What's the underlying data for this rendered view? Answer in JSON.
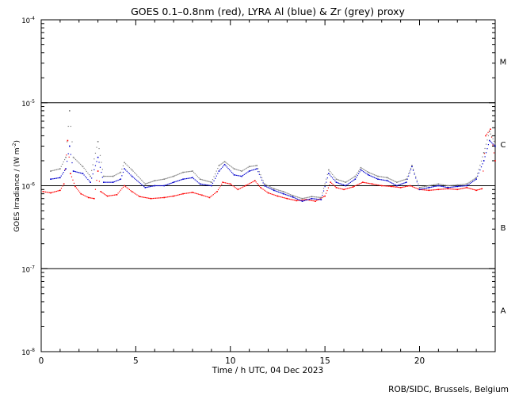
{
  "chart_data": {
    "type": "scatter",
    "title": "GOES 0.1–0.8nm (red), LYRA Al (blue) & Zr (grey) proxy",
    "xlabel": "Time / h UTC, 04 Dec 2023",
    "ylabel_main": "GOES Irradiance / (W m",
    "ylabel_sup": "-2",
    "ylabel_end": ")",
    "credit": "ROB/SIDC, Brussels, Belgium",
    "xlim": [
      0,
      24
    ],
    "ylim_log10": [
      -8,
      -4
    ],
    "x_ticks": [
      {
        "value": 0,
        "label": "0"
      },
      {
        "value": 5,
        "label": "5"
      },
      {
        "value": 10,
        "label": "10"
      },
      {
        "value": 15,
        "label": "15"
      },
      {
        "value": 20,
        "label": "20"
      }
    ],
    "y_ticks": [
      {
        "exp": -8,
        "base": "10",
        "sup": "-8"
      },
      {
        "exp": -7,
        "base": "10",
        "sup": "-7"
      },
      {
        "exp": -6,
        "base": "10",
        "sup": "-6"
      },
      {
        "exp": -5,
        "base": "10",
        "sup": "-5"
      },
      {
        "exp": -4,
        "base": "10",
        "sup": "-4"
      }
    ],
    "flare_class_lines": [
      -7,
      -6,
      -5
    ],
    "flare_classes": [
      {
        "label": "A",
        "exp": -7.5
      },
      {
        "label": "B",
        "exp": -6.5
      },
      {
        "label": "C",
        "exp": -5.5
      },
      {
        "label": "M",
        "exp": -4.5
      }
    ],
    "series": [
      {
        "name": "GOES 0.1-0.8nm",
        "color": "#ff0000",
        "points": [
          [
            0.1,
            8.5e-07
          ],
          [
            0.5,
            8.2e-07
          ],
          [
            1.0,
            8.8e-07
          ],
          [
            1.2,
            1.05e-06
          ],
          [
            1.4,
            3.5e-06
          ],
          [
            1.55,
            1.4e-06
          ],
          [
            1.8,
            9.8e-07
          ],
          [
            2.1,
            8e-07
          ],
          [
            2.5,
            7.2e-07
          ],
          [
            2.8,
            7e-07
          ],
          [
            3.0,
            1.5e-06
          ],
          [
            3.15,
            8.5e-07
          ],
          [
            3.5,
            7.5e-07
          ],
          [
            4.0,
            7.8e-07
          ],
          [
            4.4,
            1e-06
          ],
          [
            4.8,
            8.5e-07
          ],
          [
            5.2,
            7.4e-07
          ],
          [
            5.8,
            7e-07
          ],
          [
            6.5,
            7.2e-07
          ],
          [
            7.0,
            7.5e-07
          ],
          [
            7.5,
            8e-07
          ],
          [
            8.0,
            8.3e-07
          ],
          [
            8.5,
            7.7e-07
          ],
          [
            8.9,
            7.2e-07
          ],
          [
            9.3,
            8.5e-07
          ],
          [
            9.6,
            1.1e-06
          ],
          [
            10.0,
            1.05e-06
          ],
          [
            10.4,
            9e-07
          ],
          [
            10.8,
            1e-06
          ],
          [
            11.3,
            1.15e-06
          ],
          [
            11.6,
            9.5e-07
          ],
          [
            12.0,
            8.2e-07
          ],
          [
            12.5,
            7.5e-07
          ],
          [
            13.0,
            7e-07
          ],
          [
            13.5,
            6.6e-07
          ],
          [
            14.0,
            6.8e-07
          ],
          [
            14.5,
            6.5e-07
          ],
          [
            15.0,
            7.5e-07
          ],
          [
            15.3,
            1.1e-06
          ],
          [
            15.6,
            9.5e-07
          ],
          [
            16.0,
            9e-07
          ],
          [
            16.5,
            9.7e-07
          ],
          [
            17.0,
            1.1e-06
          ],
          [
            17.5,
            1.05e-06
          ],
          [
            18.0,
            1e-06
          ],
          [
            18.5,
            9.8e-07
          ],
          [
            19.0,
            9.5e-07
          ],
          [
            19.5,
            1e-06
          ],
          [
            20.0,
            9e-07
          ],
          [
            20.5,
            8.8e-07
          ],
          [
            21.0,
            9e-07
          ],
          [
            21.5,
            9.2e-07
          ],
          [
            22.0,
            9e-07
          ],
          [
            22.5,
            9.5e-07
          ],
          [
            23.0,
            8.8e-07
          ],
          [
            23.3,
            9.2e-07
          ],
          [
            23.5,
            4e-06
          ],
          [
            23.75,
            4.8e-06
          ],
          [
            24.0,
            2e-06
          ]
        ]
      },
      {
        "name": "LYRA Al proxy",
        "color": "#0000cc",
        "points": [
          [
            0.5,
            1.2e-06
          ],
          [
            1.0,
            1.25e-06
          ],
          [
            1.3,
            1.6e-06
          ],
          [
            1.5,
            3e-06
          ],
          [
            1.7,
            1.5e-06
          ],
          [
            2.2,
            1.4e-06
          ],
          [
            2.6,
            1.1e-06
          ],
          [
            3.0,
            2.2e-06
          ],
          [
            3.3,
            1.1e-06
          ],
          [
            3.8,
            1.1e-06
          ],
          [
            4.2,
            1.2e-06
          ],
          [
            4.4,
            1.6e-06
          ],
          [
            4.8,
            1.3e-06
          ],
          [
            5.5,
            9.5e-07
          ],
          [
            6.0,
            1e-06
          ],
          [
            6.5,
            1e-06
          ],
          [
            7.0,
            1.1e-06
          ],
          [
            7.5,
            1.2e-06
          ],
          [
            8.0,
            1.25e-06
          ],
          [
            8.4,
            1.05e-06
          ],
          [
            9.0,
            1e-06
          ],
          [
            9.4,
            1.5e-06
          ],
          [
            9.7,
            1.8e-06
          ],
          [
            10.2,
            1.35e-06
          ],
          [
            10.6,
            1.3e-06
          ],
          [
            11.0,
            1.5e-06
          ],
          [
            11.4,
            1.6e-06
          ],
          [
            11.8,
            1e-06
          ],
          [
            12.3,
            8.8e-07
          ],
          [
            12.8,
            8e-07
          ],
          [
            13.3,
            7.3e-07
          ],
          [
            13.8,
            6.5e-07
          ],
          [
            14.3,
            7e-07
          ],
          [
            14.8,
            6.8e-07
          ],
          [
            15.2,
            1.4e-06
          ],
          [
            15.6,
            1.1e-06
          ],
          [
            16.1,
            1e-06
          ],
          [
            16.6,
            1.2e-06
          ],
          [
            16.9,
            1.55e-06
          ],
          [
            17.3,
            1.35e-06
          ],
          [
            17.8,
            1.2e-06
          ],
          [
            18.3,
            1.15e-06
          ],
          [
            18.8,
            1e-06
          ],
          [
            19.3,
            1.1e-06
          ],
          [
            19.6,
            1.7e-06
          ],
          [
            20.0,
            9e-07
          ],
          [
            20.5,
            9.5e-07
          ],
          [
            21.0,
            1e-06
          ],
          [
            21.5,
            9.5e-07
          ],
          [
            22.0,
            9.8e-07
          ],
          [
            22.5,
            1e-06
          ],
          [
            23.0,
            1.2e-06
          ],
          [
            23.4,
            2e-06
          ],
          [
            23.7,
            3.5e-06
          ],
          [
            24.0,
            3e-06
          ]
        ]
      },
      {
        "name": "LYRA Zr proxy",
        "color": "#808080",
        "points": [
          [
            0.5,
            1.5e-06
          ],
          [
            1.0,
            1.6e-06
          ],
          [
            1.3,
            2.2e-06
          ],
          [
            1.5,
            8e-06
          ],
          [
            1.7,
            2.2e-06
          ],
          [
            2.2,
            1.7e-06
          ],
          [
            2.6,
            1.3e-06
          ],
          [
            3.0,
            3.4e-06
          ],
          [
            3.3,
            1.3e-06
          ],
          [
            3.8,
            1.3e-06
          ],
          [
            4.2,
            1.45e-06
          ],
          [
            4.4,
            1.9e-06
          ],
          [
            4.8,
            1.55e-06
          ],
          [
            5.5,
            1.05e-06
          ],
          [
            6.0,
            1.15e-06
          ],
          [
            6.5,
            1.2e-06
          ],
          [
            7.0,
            1.3e-06
          ],
          [
            7.5,
            1.45e-06
          ],
          [
            8.0,
            1.5e-06
          ],
          [
            8.4,
            1.2e-06
          ],
          [
            9.0,
            1.1e-06
          ],
          [
            9.4,
            1.75e-06
          ],
          [
            9.7,
            1.95e-06
          ],
          [
            10.2,
            1.6e-06
          ],
          [
            10.6,
            1.5e-06
          ],
          [
            11.0,
            1.7e-06
          ],
          [
            11.4,
            1.75e-06
          ],
          [
            11.8,
            1.05e-06
          ],
          [
            12.3,
            9.2e-07
          ],
          [
            12.8,
            8.5e-07
          ],
          [
            13.3,
            7.6e-07
          ],
          [
            13.8,
            7e-07
          ],
          [
            14.3,
            7.4e-07
          ],
          [
            14.8,
            7.2e-07
          ],
          [
            15.2,
            1.55e-06
          ],
          [
            15.6,
            1.2e-06
          ],
          [
            16.1,
            1.1e-06
          ],
          [
            16.6,
            1.3e-06
          ],
          [
            16.9,
            1.65e-06
          ],
          [
            17.3,
            1.45e-06
          ],
          [
            17.8,
            1.3e-06
          ],
          [
            18.3,
            1.25e-06
          ],
          [
            18.8,
            1.1e-06
          ],
          [
            19.3,
            1.2e-06
          ],
          [
            19.6,
            1.75e-06
          ],
          [
            20.0,
            9.5e-07
          ],
          [
            20.5,
            1e-06
          ],
          [
            21.0,
            1.05e-06
          ],
          [
            21.5,
            1e-06
          ],
          [
            22.0,
            1.02e-06
          ],
          [
            22.5,
            1.05e-06
          ],
          [
            23.0,
            1.25e-06
          ],
          [
            23.4,
            2.5e-06
          ],
          [
            23.7,
            4.5e-06
          ],
          [
            24.0,
            3.2e-06
          ]
        ]
      }
    ]
  }
}
